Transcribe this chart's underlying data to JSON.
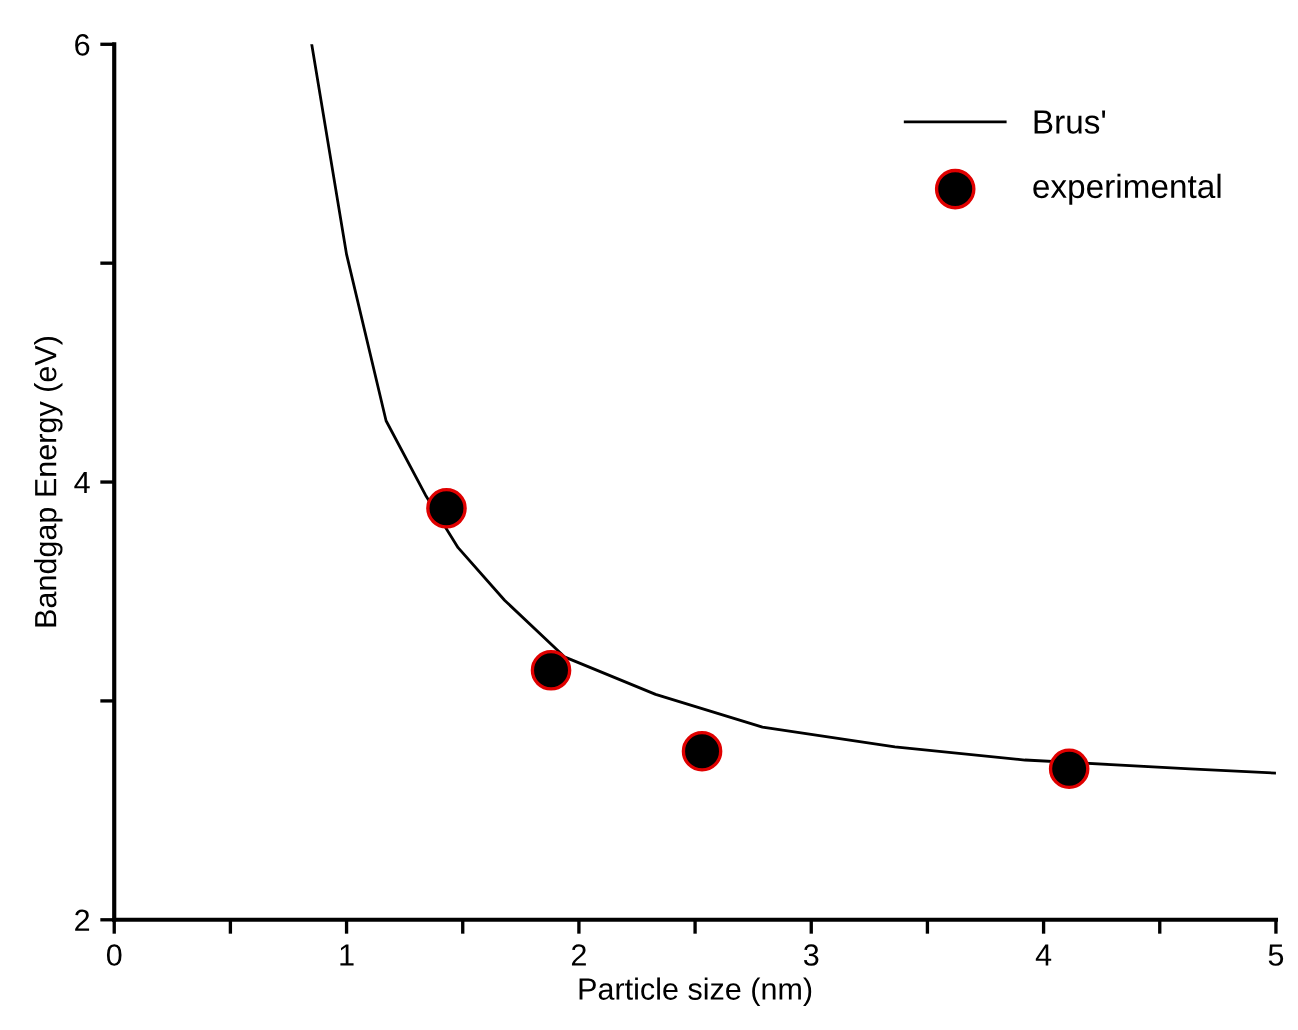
{
  "chart_data": {
    "type": "line",
    "xlabel": "Particle size (nm)",
    "ylabel": "Bandgap Energy (eV)",
    "xlim": [
      0,
      5
    ],
    "ylim": [
      2,
      6
    ],
    "xticks": [
      0,
      {
        "value": 0.5,
        "label": null
      },
      1,
      {
        "value": 1.5,
        "label": null
      },
      2,
      {
        "value": 2.5,
        "label": null
      },
      3,
      {
        "value": 3.5,
        "label": null
      },
      4,
      {
        "value": 4.5,
        "label": null
      },
      5
    ],
    "yticks": [
      2,
      {
        "value": 3,
        "label": null
      },
      4,
      {
        "value": 5,
        "label": null
      },
      6
    ],
    "grid": false,
    "legend": "top right",
    "series": [
      {
        "name": "Brus'",
        "color": "#000000",
        "marker": "none",
        "line_style": "solid",
        "x": [
          0.85,
          1.0,
          1.17,
          1.34,
          1.48,
          1.68,
          1.94,
          2.33,
          2.79,
          3.36,
          3.92,
          4.63,
          5.0
        ],
        "values": [
          6.0,
          5.04,
          4.28,
          3.94,
          3.7,
          3.46,
          3.2,
          3.03,
          2.88,
          2.79,
          2.73,
          2.69,
          2.67
        ]
      },
      {
        "name": "experimental",
        "type": "scatter",
        "color": "#000000",
        "marker": "circle",
        "x": [
          1.43,
          1.88,
          2.53,
          4.11
        ],
        "values": [
          3.88,
          3.14,
          2.77,
          2.69
        ]
      }
    ]
  }
}
